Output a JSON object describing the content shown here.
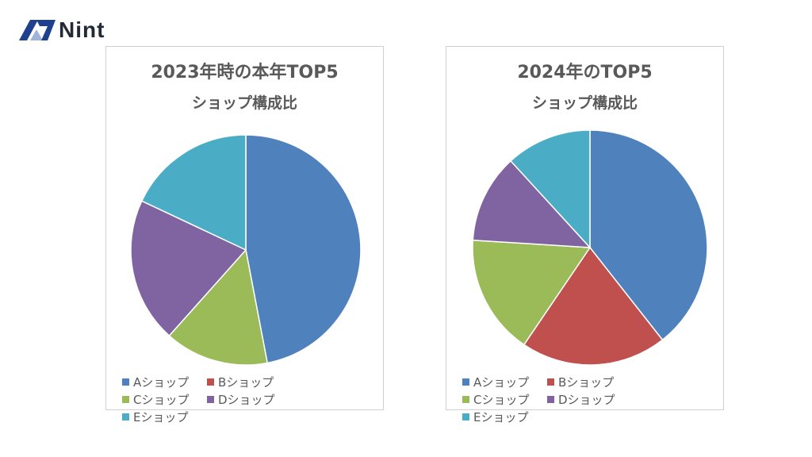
{
  "logo": {
    "text": "Nint"
  },
  "chart_data": [
    {
      "type": "pie",
      "title": "2023年時の本年TOP5",
      "subtitle": "ショップ構成比",
      "labels": [
        "Aショップ",
        "Bショップ",
        "Cショップ",
        "Dショップ",
        "Eショップ"
      ],
      "values": [
        47,
        0,
        14.6,
        20.4,
        18
      ],
      "legend": "bottom"
    },
    {
      "type": "pie",
      "title": "2024年のTOP5",
      "subtitle": "ショップ構成比",
      "labels": [
        "Aショップ",
        "Bショップ",
        "Cショップ",
        "Dショップ",
        "Eショップ"
      ],
      "values": [
        39.4,
        20.1,
        16.5,
        12.2,
        11.8
      ],
      "legend": "bottom"
    }
  ],
  "colors": [
    "#4f81bd",
    "#c0504d",
    "#9bbb59",
    "#8064a2",
    "#4bacc6"
  ]
}
